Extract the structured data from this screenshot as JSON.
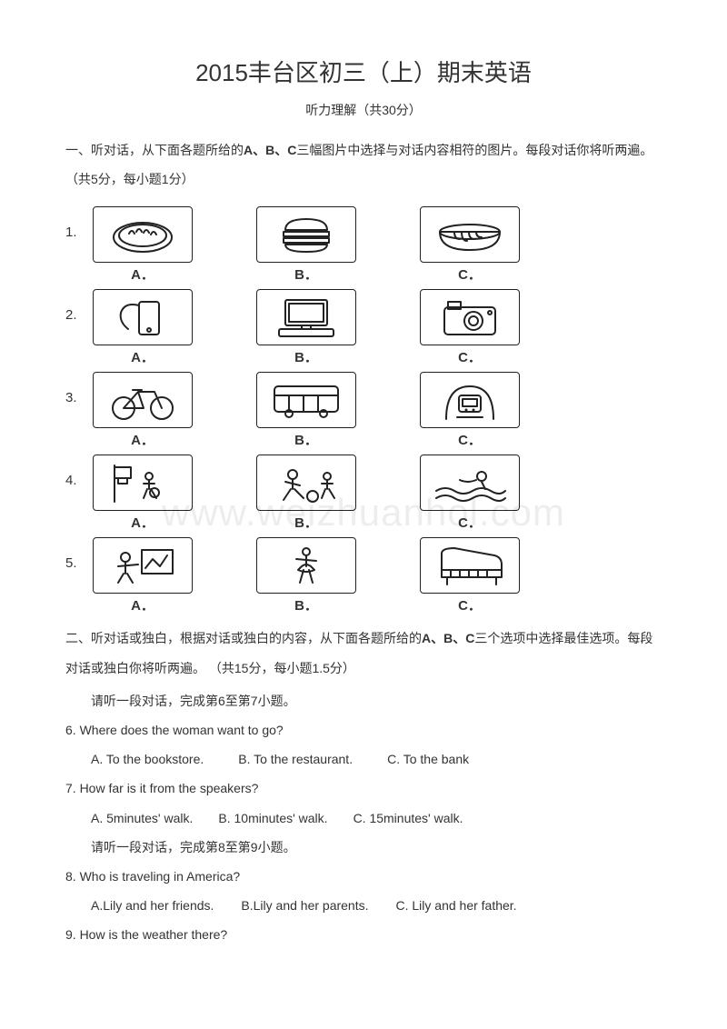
{
  "title": "2015丰台区初三（上）期末英语",
  "subtitle": "听力理解（共30分）",
  "section1_instruction_pre": "一、听对话，从下面各题所给的",
  "section1_instruction_bold": "A、B、C",
  "section1_instruction_post": "三幅图片中选择与对话内容相符的图片。每段对话你将听两遍。（共5分，每小题1分）",
  "picture_questions": [
    {
      "num": "1.",
      "labels": [
        "A．",
        "B．",
        "C．"
      ],
      "icons": [
        "dumplings",
        "burger",
        "noodles"
      ]
    },
    {
      "num": "2.",
      "labels": [
        "A．",
        "B．",
        "C．"
      ],
      "icons": [
        "phone",
        "computer",
        "camera"
      ]
    },
    {
      "num": "3.",
      "labels": [
        "A．",
        "B．",
        "C．"
      ],
      "icons": [
        "bicycle",
        "bus",
        "subway"
      ]
    },
    {
      "num": "4.",
      "labels": [
        "A．",
        "B．",
        "C．"
      ],
      "icons": [
        "basketball",
        "football",
        "swimming"
      ]
    },
    {
      "num": "5.",
      "labels": [
        "A．",
        "B．",
        "C．"
      ],
      "icons": [
        "painting",
        "ballet",
        "piano"
      ]
    }
  ],
  "watermark_text": "www.weizhuanhol.com",
  "section2_pre": "二、听对话或独白，根据对话或独白的内容，从下面各题所给的",
  "section2_bold": "A、B、C",
  "section2_post": "三个选项中选择最佳选项。每段对话或独白你将听两遍。 （共15分，每小题1.5分）",
  "sub1": "请听一段对话，完成第6至第7小题。",
  "q6": {
    "text": "6. Where does the woman want to go?",
    "opts": [
      "A. To the bookstore.",
      "B. To the restaurant.",
      "C. To the bank"
    ]
  },
  "q7": {
    "text": "7. How far is it from the speakers?",
    "opts": [
      "A. 5minutes' walk.",
      "B. 10minutes' walk.",
      "C. 15minutes' walk."
    ]
  },
  "sub2": "请听一段对话，完成第8至第9小题。",
  "q8": {
    "text": "8. Who is traveling in America?",
    "opts": [
      "A.Lily and her friends.",
      "B.Lily and her parents.",
      "C. Lily and her father."
    ]
  },
  "q9": {
    "text": "9. How is the weather there?"
  },
  "colors": {
    "text": "#333333",
    "border": "#222222",
    "background": "#ffffff",
    "watermark": "rgba(0,0,0,0.07)"
  }
}
